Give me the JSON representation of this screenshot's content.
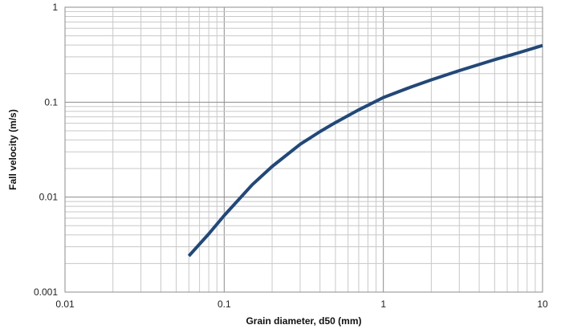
{
  "chart_data": {
    "type": "line",
    "title": "",
    "xlabel": "Grain diameter, d50 (mm)",
    "ylabel": "Fall velocity (m/s)",
    "x_scale": "log",
    "y_scale": "log",
    "xlim": [
      0.01,
      10
    ],
    "ylim": [
      0.001,
      1
    ],
    "grid": true,
    "legend": "none",
    "x_tick_labels": [
      "0.01",
      "0.1",
      "1",
      "10"
    ],
    "y_tick_labels": [
      "0.001",
      "0.01",
      "0.1",
      "1"
    ],
    "series": [
      {
        "color": "#1f497d",
        "x": [
          0.06,
          0.08,
          0.1,
          0.15,
          0.2,
          0.3,
          0.4,
          0.5,
          0.7,
          1,
          1.5,
          2,
          3,
          5,
          7,
          10
        ],
        "y": [
          0.0024,
          0.0041,
          0.0064,
          0.0135,
          0.021,
          0.036,
          0.049,
          0.061,
          0.083,
          0.112,
          0.145,
          0.172,
          0.215,
          0.28,
          0.33,
          0.395
        ]
      }
    ]
  }
}
